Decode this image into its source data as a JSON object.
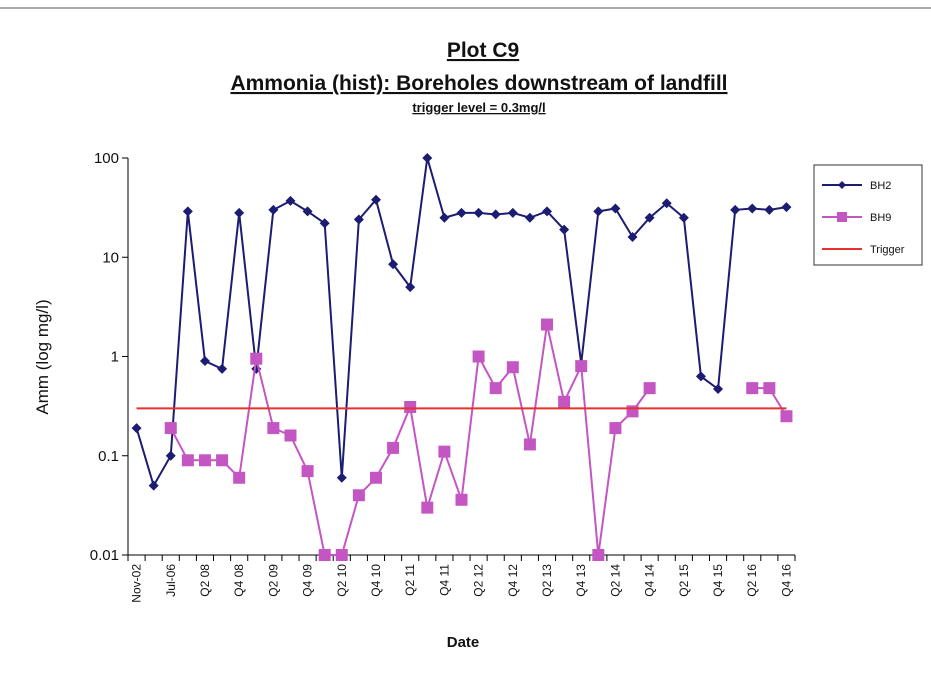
{
  "chart_data": {
    "type": "line",
    "title": "Plot C9",
    "subtitle": "Ammonia (hist): Boreholes downstream of landfill",
    "annotation": "trigger level = 0.3mg/l",
    "x_label": "Date",
    "y_label": "Amm (log mg/l)",
    "log_scale": true,
    "legend": "right",
    "categories": [
      "Nov-02",
      null,
      "Jul-06",
      null,
      "Q2 08",
      null,
      "Q4 08",
      null,
      "Q2 09",
      null,
      "Q4 09",
      null,
      "Q2 10",
      null,
      "Q4 10",
      null,
      "Q2 11",
      null,
      "Q4 11",
      null,
      "Q2 12",
      null,
      "Q4 12",
      null,
      "Q2 13",
      null,
      "Q4 13",
      null,
      "Q2 14",
      null,
      "Q4 14",
      null,
      "Q2 15",
      null,
      "Q4 15",
      null,
      "Q2 16",
      null,
      "Q4 16"
    ],
    "ylim": [
      0.01,
      100
    ],
    "yticks": [
      0.01,
      0.1,
      1,
      10,
      100
    ],
    "series": [
      {
        "name": "BH2",
        "color": "#1c1c72",
        "marker": "diamond",
        "values": [
          0.19,
          0.05,
          0.1,
          29,
          0.9,
          0.75,
          28,
          0.75,
          30,
          37,
          29,
          22,
          0.06,
          24,
          38,
          8.5,
          5,
          100,
          25,
          28,
          28,
          27,
          28,
          25,
          29,
          19,
          0.85,
          29,
          31,
          16,
          25,
          35,
          25,
          0.63,
          0.47,
          30,
          31,
          30,
          32
        ]
      },
      {
        "name": "BH9",
        "color": "#c456c4",
        "marker": "square",
        "values": [
          null,
          null,
          0.19,
          0.09,
          0.09,
          0.09,
          0.06,
          0.95,
          0.19,
          0.16,
          0.07,
          0.01,
          0.01,
          0.04,
          0.06,
          0.12,
          0.31,
          0.03,
          0.11,
          0.036,
          1.0,
          0.48,
          0.78,
          0.13,
          2.1,
          0.35,
          0.8,
          0.01,
          0.19,
          0.28,
          0.48,
          null,
          null,
          null,
          null,
          null,
          0.48,
          0.48,
          0.25
        ]
      },
      {
        "name": "Trigger",
        "color": "#e8312b",
        "marker": "none",
        "values": [
          0.3,
          0.3,
          0.3,
          0.3,
          0.3,
          0.3,
          0.3,
          0.3,
          0.3,
          0.3,
          0.3,
          0.3,
          0.3,
          0.3,
          0.3,
          0.3,
          0.3,
          0.3,
          0.3,
          0.3,
          0.3,
          0.3,
          0.3,
          0.3,
          0.3,
          0.3,
          0.3,
          0.3,
          0.3,
          0.3,
          0.3,
          0.3,
          0.3,
          0.3,
          0.3,
          0.3,
          0.3,
          0.3,
          0.3
        ]
      }
    ]
  }
}
